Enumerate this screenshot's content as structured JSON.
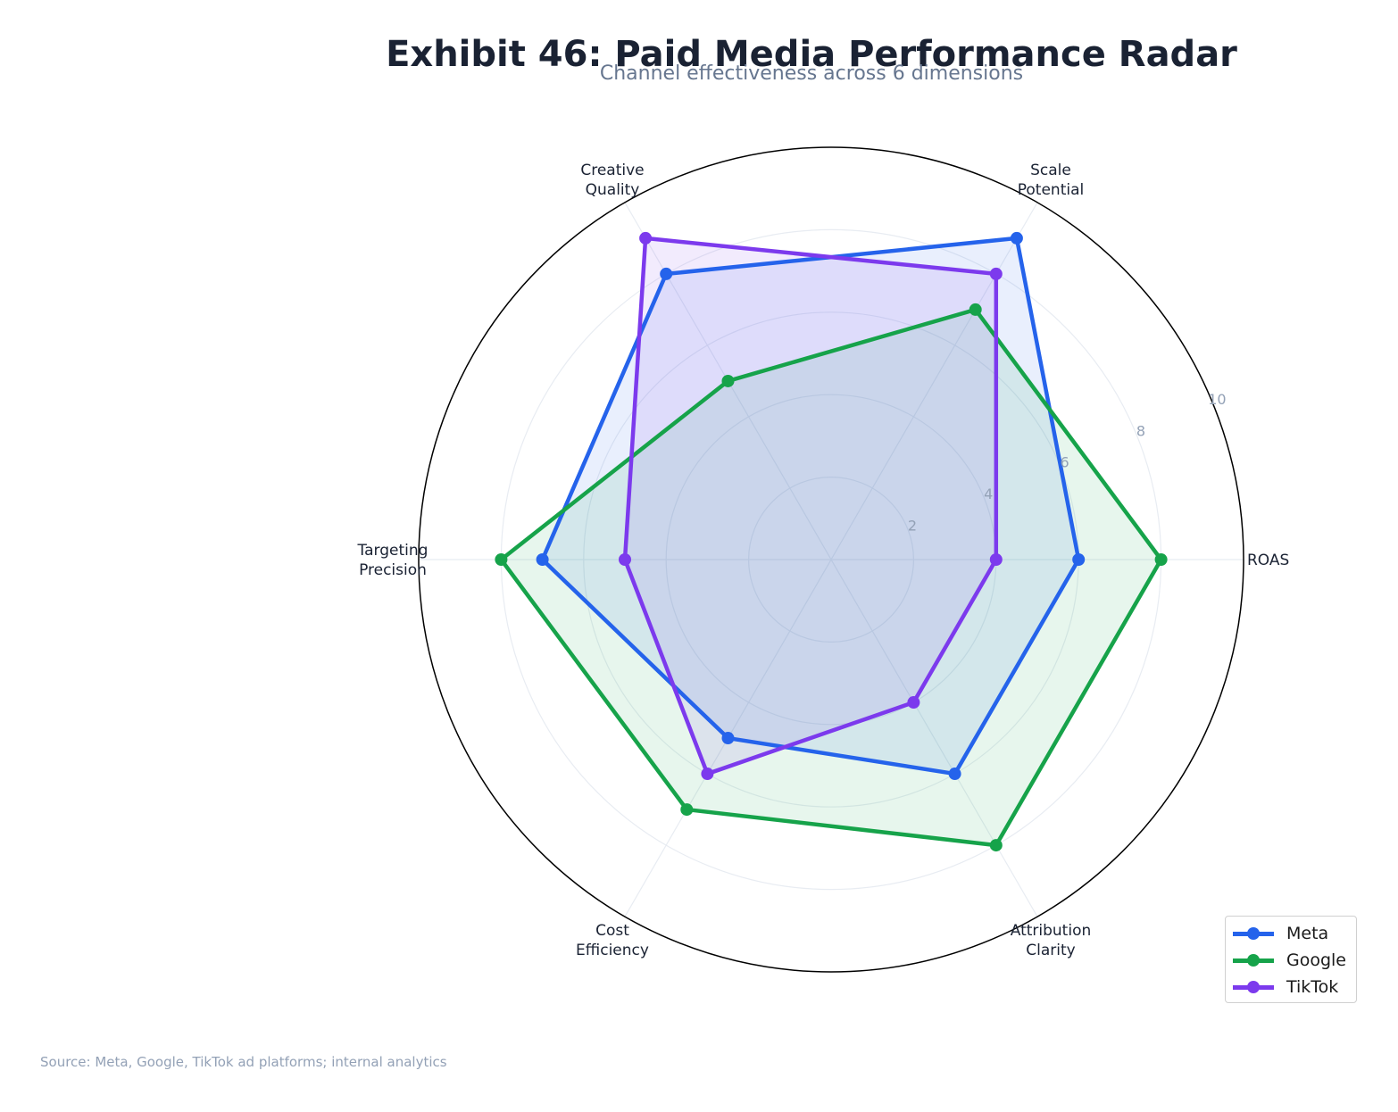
{
  "title": "Exhibit 46: Paid Media Performance Radar",
  "subtitle": "Channel effectiveness across 6 dimensions",
  "source": "Source: Meta, Google, TikTok ad platforms; internal analytics",
  "chart_data": {
    "type": "radar",
    "title": "Exhibit 46: Paid Media Performance Radar",
    "subtitle": "Channel effectiveness across 6 dimensions",
    "categories": [
      "ROAS",
      "Scale\nPotential",
      "Creative\nQuality",
      "Targeting\nPrecision",
      "Cost\nEfficiency",
      "Attribution\nClarity"
    ],
    "rlim": [
      0,
      10
    ],
    "rticks": [
      2,
      4,
      6,
      8,
      10
    ],
    "grid": true,
    "legend_position": "lower right",
    "series": [
      {
        "name": "Meta",
        "color": "#2563eb",
        "values": [
          6,
          9,
          8,
          7,
          5,
          6
        ]
      },
      {
        "name": "Google",
        "color": "#16a34a",
        "values": [
          8,
          7,
          5,
          8,
          7,
          8
        ]
      },
      {
        "name": "TikTok",
        "color": "#7c3aed",
        "values": [
          4,
          8,
          9,
          5,
          6,
          4
        ]
      }
    ]
  },
  "legend": [
    {
      "label": "Meta",
      "color": "#2563eb"
    },
    {
      "label": "Google",
      "color": "#16a34a"
    },
    {
      "label": "TikTok",
      "color": "#7c3aed"
    }
  ]
}
